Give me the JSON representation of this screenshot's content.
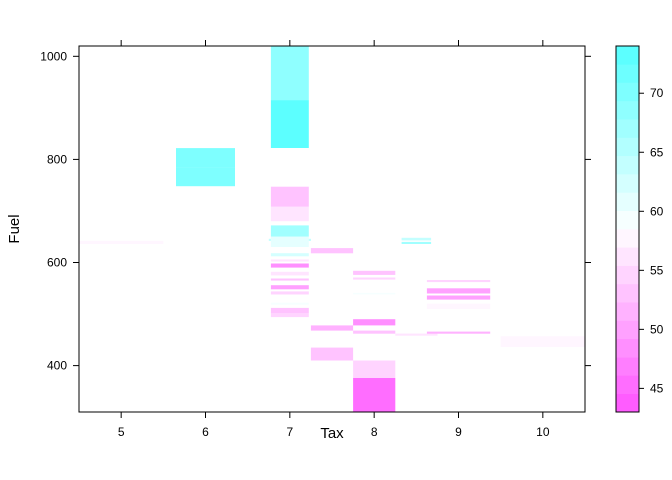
{
  "chart_data": {
    "type": "heatmap",
    "title": "",
    "xlabel": "Tax",
    "ylabel": "Fuel",
    "x_ticks": [
      5,
      6,
      7,
      8,
      9,
      10
    ],
    "y_ticks": [
      400,
      600,
      800,
      1000
    ],
    "xlim": [
      4.5,
      10.5
    ],
    "ylim": [
      310,
      1020
    ],
    "colorbar": {
      "range": [
        43,
        74
      ],
      "ticks": [
        45,
        50,
        55,
        60,
        65,
        70
      ],
      "low_color": "#ff5cff",
      "mid_color": "#ffffff",
      "high_color": "#5cffff"
    },
    "cells": [
      {
        "x": 5,
        "w": 1.0,
        "y0": 636,
        "y1": 642,
        "value": 57
      },
      {
        "x": 6,
        "w": 0.7,
        "y0": 748,
        "y1": 785,
        "value": 70
      },
      {
        "x": 6,
        "w": 0.7,
        "y0": 785,
        "y1": 822,
        "value": 71
      },
      {
        "x": 7,
        "w": 0.5,
        "y0": 642,
        "y1": 646,
        "value": 64
      },
      {
        "x": 7,
        "w": 0.45,
        "y0": 915,
        "y1": 1020,
        "value": 69
      },
      {
        "x": 7,
        "w": 0.45,
        "y0": 822,
        "y1": 915,
        "value": 74
      },
      {
        "x": 7,
        "w": 0.45,
        "y0": 708,
        "y1": 747,
        "value": 53
      },
      {
        "x": 7,
        "w": 0.45,
        "y0": 680,
        "y1": 708,
        "value": 56
      },
      {
        "x": 7,
        "w": 0.45,
        "y0": 650,
        "y1": 672,
        "value": 67
      },
      {
        "x": 7,
        "w": 0.45,
        "y0": 630,
        "y1": 650,
        "value": 61
      },
      {
        "x": 7,
        "w": 0.45,
        "y0": 612,
        "y1": 618,
        "value": 62
      },
      {
        "x": 7,
        "w": 0.45,
        "y0": 602,
        "y1": 606,
        "value": 56
      },
      {
        "x": 7,
        "w": 0.45,
        "y0": 590,
        "y1": 598,
        "value": 48
      },
      {
        "x": 7,
        "w": 0.45,
        "y0": 575,
        "y1": 582,
        "value": 56
      },
      {
        "x": 7,
        "w": 0.45,
        "y0": 565,
        "y1": 569,
        "value": 52
      },
      {
        "x": 7,
        "w": 0.45,
        "y0": 548,
        "y1": 556,
        "value": 49
      },
      {
        "x": 7,
        "w": 0.45,
        "y0": 538,
        "y1": 544,
        "value": 55
      },
      {
        "x": 7,
        "w": 0.45,
        "y0": 518,
        "y1": 522,
        "value": 60
      },
      {
        "x": 7,
        "w": 0.45,
        "y0": 502,
        "y1": 512,
        "value": 53
      },
      {
        "x": 7,
        "w": 0.45,
        "y0": 494,
        "y1": 502,
        "value": 55
      },
      {
        "x": 7.5,
        "w": 0.5,
        "y0": 618,
        "y1": 628,
        "value": 53
      },
      {
        "x": 7.5,
        "w": 0.5,
        "y0": 468,
        "y1": 478,
        "value": 51
      },
      {
        "x": 7.5,
        "w": 0.5,
        "y0": 410,
        "y1": 435,
        "value": 52
      },
      {
        "x": 8,
        "w": 0.5,
        "y0": 576,
        "y1": 584,
        "value": 53
      },
      {
        "x": 8,
        "w": 0.5,
        "y0": 567,
        "y1": 571,
        "value": 55
      },
      {
        "x": 8,
        "w": 0.5,
        "y0": 538,
        "y1": 541,
        "value": 60
      },
      {
        "x": 8,
        "w": 0.5,
        "y0": 478,
        "y1": 490,
        "value": 48
      },
      {
        "x": 8,
        "w": 0.5,
        "y0": 462,
        "y1": 468,
        "value": 52
      },
      {
        "x": 8,
        "w": 0.5,
        "y0": 376,
        "y1": 410,
        "value": 54
      },
      {
        "x": 8,
        "w": 0.5,
        "y0": 310,
        "y1": 376,
        "value": 45
      },
      {
        "x": 8.5,
        "w": 0.35,
        "y0": 643,
        "y1": 648,
        "value": 65
      },
      {
        "x": 8.5,
        "w": 0.35,
        "y0": 636,
        "y1": 640,
        "value": 68
      },
      {
        "x": 8.5,
        "w": 0.5,
        "y0": 458,
        "y1": 462,
        "value": 56
      },
      {
        "x": 9,
        "w": 0.75,
        "y0": 562,
        "y1": 566,
        "value": 54
      },
      {
        "x": 9,
        "w": 0.75,
        "y0": 540,
        "y1": 550,
        "value": 50
      },
      {
        "x": 9,
        "w": 0.75,
        "y0": 528,
        "y1": 536,
        "value": 49
      },
      {
        "x": 9,
        "w": 0.75,
        "y0": 510,
        "y1": 520,
        "value": 57
      },
      {
        "x": 9,
        "w": 0.75,
        "y0": 462,
        "y1": 466,
        "value": 51
      },
      {
        "x": 10,
        "w": 1.0,
        "y0": 436,
        "y1": 457,
        "value": 57
      }
    ]
  }
}
